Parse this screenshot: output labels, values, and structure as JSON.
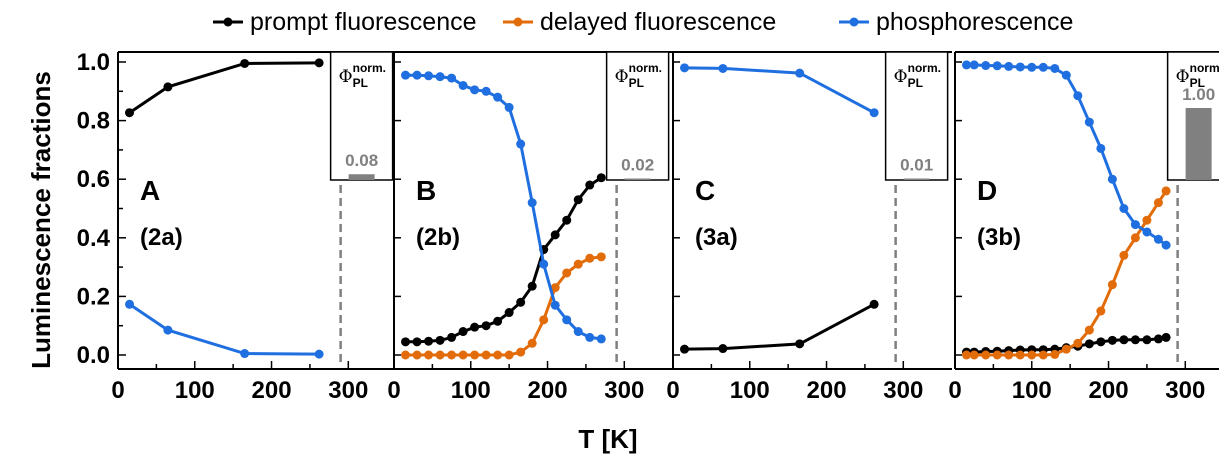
{
  "legend": {
    "items": [
      {
        "label": "prompt fluorescence",
        "color": "#000000"
      },
      {
        "label": "delayed fluorescence",
        "color": "#E36C0A"
      },
      {
        "label": "phosphorescence",
        "color": "#1F6FE0"
      }
    ]
  },
  "chart_data": {
    "type": "line",
    "ylabel": "Luminescence fractions",
    "xlabel": "T [K]",
    "ylim": [
      0,
      1.0
    ],
    "xlim": [
      0,
      340
    ],
    "yticks": [
      "0.0",
      "0.2",
      "0.4",
      "0.6",
      "0.8",
      "1.0"
    ],
    "xticks": [
      "0",
      "100",
      "200",
      "300"
    ],
    "inset_label_main": "Φ",
    "inset_label_sup": "norm.",
    "inset_label_sub": "PL",
    "inset_label_sup_last": "norm",
    "colors": {
      "prompt": "#000000",
      "delayed": "#E36C0A",
      "phos": "#1F6FE0",
      "bar": "#808080"
    },
    "panels": [
      {
        "letter": "A",
        "sublabel": "(2a)",
        "inset_value": "0.08",
        "inset_fraction": 0.08,
        "series": {
          "prompt": {
            "x": [
              15,
              65,
              165,
              262
            ],
            "y": [
              0.827,
              0.915,
              0.995,
              0.997
            ]
          },
          "delayed": {
            "x": [],
            "y": []
          },
          "phos": {
            "x": [
              15,
              65,
              165,
              262
            ],
            "y": [
              0.173,
              0.085,
              0.005,
              0.003
            ]
          }
        }
      },
      {
        "letter": "B",
        "sublabel": "(2b)",
        "inset_value": "0.02",
        "inset_fraction": 0.02,
        "series": {
          "prompt": {
            "x": [
              15,
              30,
              45,
              60,
              75,
              90,
              105,
              120,
              135,
              150,
              165,
              180,
              195,
              210,
              225,
              240,
              255,
              270
            ],
            "y": [
              0.045,
              0.045,
              0.047,
              0.05,
              0.06,
              0.08,
              0.095,
              0.1,
              0.115,
              0.145,
              0.18,
              0.235,
              0.36,
              0.41,
              0.46,
              0.53,
              0.58,
              0.605
            ]
          },
          "delayed": {
            "x": [
              15,
              30,
              45,
              60,
              75,
              90,
              105,
              120,
              135,
              150,
              165,
              180,
              195,
              210,
              225,
              240,
              255,
              270
            ],
            "y": [
              0.0,
              0.0,
              0.0,
              0.0,
              0.0,
              0.0,
              0.0,
              0.0,
              0.0,
              0.0,
              0.01,
              0.04,
              0.12,
              0.23,
              0.28,
              0.31,
              0.33,
              0.335
            ]
          },
          "phos": {
            "x": [
              15,
              30,
              45,
              60,
              75,
              90,
              105,
              120,
              135,
              150,
              165,
              180,
              195,
              210,
              225,
              240,
              255,
              270
            ],
            "y": [
              0.955,
              0.955,
              0.953,
              0.95,
              0.945,
              0.92,
              0.905,
              0.9,
              0.88,
              0.845,
              0.72,
              0.52,
              0.31,
              0.17,
              0.12,
              0.08,
              0.06,
              0.055
            ]
          }
        }
      },
      {
        "letter": "C",
        "sublabel": "(3a)",
        "inset_value": "0.01",
        "inset_fraction": 0.01,
        "series": {
          "prompt": {
            "x": [
              15,
              65,
              165,
              262
            ],
            "y": [
              0.02,
              0.022,
              0.038,
              0.173
            ]
          },
          "delayed": {
            "x": [],
            "y": []
          },
          "phos": {
            "x": [
              15,
              65,
              165,
              262
            ],
            "y": [
              0.98,
              0.978,
              0.962,
              0.827
            ]
          }
        }
      },
      {
        "letter": "D",
        "sublabel": "(3b)",
        "inset_value": "1.00",
        "inset_fraction": 1.0,
        "series": {
          "prompt": {
            "x": [
              15,
              25,
              40,
              55,
              70,
              85,
              100,
              115,
              130,
              145,
              160,
              175,
              190,
              205,
              220,
              235,
              250,
              265,
              275
            ],
            "y": [
              0.01,
              0.01,
              0.012,
              0.013,
              0.015,
              0.017,
              0.018,
              0.018,
              0.02,
              0.025,
              0.03,
              0.038,
              0.045,
              0.05,
              0.052,
              0.052,
              0.052,
              0.055,
              0.06
            ]
          },
          "delayed": {
            "x": [
              15,
              25,
              40,
              55,
              70,
              85,
              100,
              115,
              130,
              145,
              160,
              175,
              190,
              205,
              220,
              235,
              250,
              265,
              275
            ],
            "y": [
              0.0,
              0.0,
              0.0,
              0.0,
              0.0,
              0.0,
              0.0,
              0.0,
              0.002,
              0.02,
              0.04,
              0.085,
              0.15,
              0.24,
              0.34,
              0.4,
              0.46,
              0.52,
              0.56
            ]
          },
          "phos": {
            "x": [
              15,
              25,
              40,
              55,
              70,
              85,
              100,
              115,
              130,
              145,
              160,
              175,
              190,
              205,
              220,
              235,
              250,
              265,
              275
            ],
            "y": [
              0.99,
              0.99,
              0.988,
              0.987,
              0.985,
              0.983,
              0.982,
              0.982,
              0.978,
              0.955,
              0.885,
              0.795,
              0.705,
              0.6,
              0.5,
              0.445,
              0.42,
              0.395,
              0.375
            ]
          }
        }
      }
    ]
  }
}
